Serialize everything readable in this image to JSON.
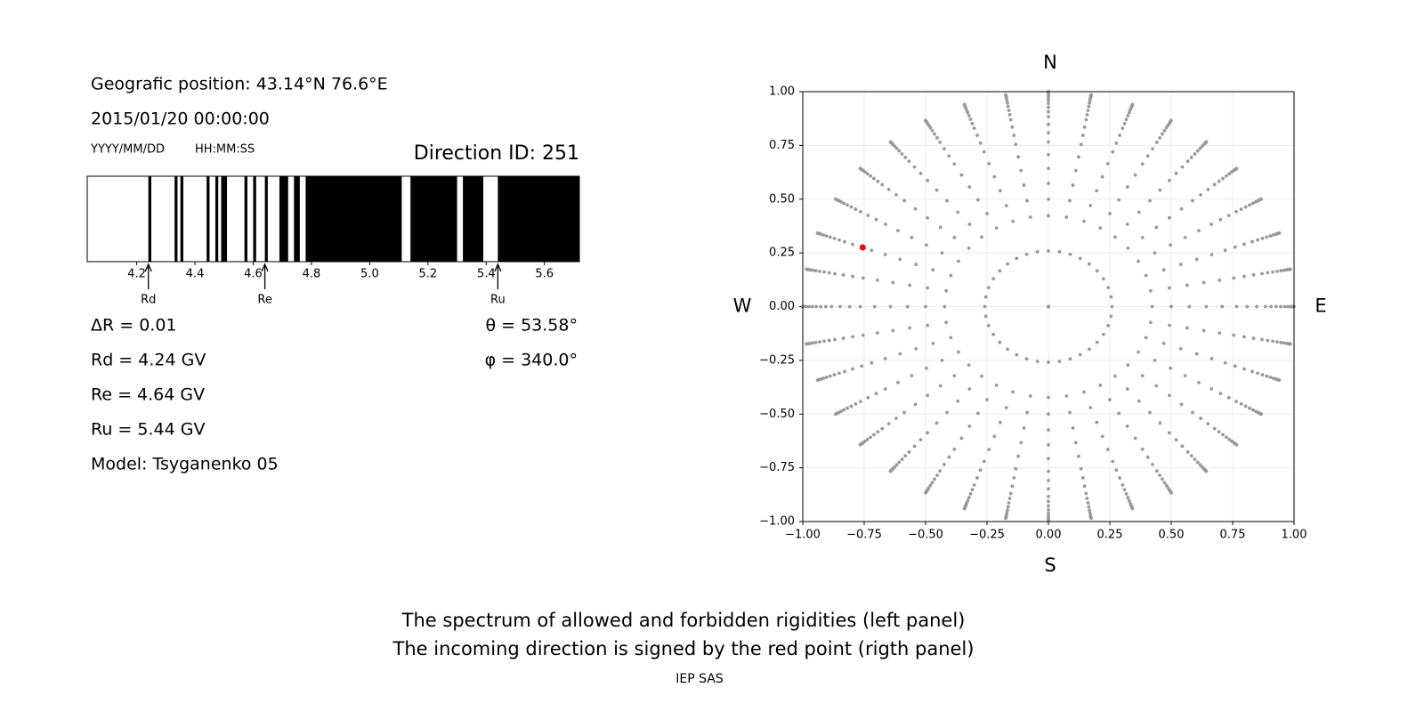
{
  "header": {
    "position": "Geografic position: 43.14°N 76.6°E",
    "datetime": "2015/01/20 00:00:00",
    "date_format": "YYYY/MM/DD",
    "time_format": "HH:MM:SS",
    "direction_id": "Direction ID: 251"
  },
  "chart_data": [
    {
      "type": "spectrum",
      "color": "#000000",
      "xlim": [
        4.03,
        5.72
      ],
      "xticks": [
        4.2,
        4.4,
        4.6,
        4.8,
        {
          "value": 5,
          "label": "5.0"
        },
        5.2,
        5.4,
        5.6
      ],
      "bands": [
        [
          4.24,
          4.25
        ],
        [
          4.33,
          4.34
        ],
        [
          4.35,
          4.36
        ],
        [
          4.44,
          4.45
        ],
        [
          4.47,
          4.48
        ],
        [
          4.49,
          4.51
        ],
        [
          4.57,
          4.58
        ],
        [
          4.6,
          4.61
        ],
        [
          4.64,
          4.65
        ],
        [
          4.69,
          4.72
        ],
        [
          4.74,
          4.76
        ],
        [
          4.78,
          5.11
        ],
        [
          5.14,
          5.3
        ],
        [
          5.32,
          5.39
        ],
        [
          5.44,
          5.72
        ]
      ],
      "markers": [
        {
          "label": "Rd",
          "value": 4.24
        },
        {
          "label": "Re",
          "value": 4.64
        },
        {
          "label": "Ru",
          "value": 5.44
        }
      ]
    },
    {
      "type": "scatter",
      "color": "#999999",
      "grid": true,
      "xlim": [
        -1,
        1
      ],
      "ylim": [
        -1,
        1
      ],
      "xticks": [
        {
          "value": -1,
          "label": "−1.00"
        },
        {
          "value": -0.75,
          "label": "−0.75"
        },
        {
          "value": -0.5,
          "label": "−0.50"
        },
        {
          "value": -0.25,
          "label": "−0.25"
        },
        {
          "value": 0,
          "label": "0.00"
        },
        {
          "value": 0.25,
          "label": "0.25"
        },
        {
          "value": 0.5,
          "label": "0.50"
        },
        {
          "value": 0.75,
          "label": "0.75"
        },
        {
          "value": 1,
          "label": "1.00"
        }
      ],
      "yticks": [
        {
          "value": -1,
          "label": "−1.00"
        },
        {
          "value": -0.75,
          "label": "−0.75"
        },
        {
          "value": -0.5,
          "label": "−0.50"
        },
        {
          "value": -0.25,
          "label": "−0.25"
        },
        {
          "value": 0,
          "label": "0.00"
        },
        {
          "value": 0.25,
          "label": "0.25"
        },
        {
          "value": 0.5,
          "label": "0.50"
        },
        {
          "value": 0.75,
          "label": "0.75"
        },
        {
          "value": 1,
          "label": "1.00"
        }
      ],
      "theta": [
        0,
        15,
        25,
        30,
        35,
        40,
        45,
        50,
        54,
        58,
        62,
        65,
        68,
        71,
        74,
        77,
        80,
        82,
        84,
        86,
        88,
        90
      ],
      "phi": [
        0,
        10,
        20,
        30,
        40,
        50,
        60,
        70,
        80,
        90,
        100,
        110,
        120,
        130,
        140,
        150,
        160,
        170,
        180,
        190,
        200,
        210,
        220,
        230,
        240,
        250,
        260,
        270,
        280,
        290,
        300,
        310,
        320,
        330,
        340,
        350
      ],
      "highlight": {
        "theta": 53.58,
        "phi": 340.0,
        "color": "#ff0000"
      },
      "compass": {
        "north": "N",
        "south": "S",
        "west": "W",
        "east": "E"
      }
    }
  ],
  "parameters": {
    "left": [
      "ΔR = 0.01",
      "Rd = 4.24 GV",
      "Re = 4.64 GV",
      "Ru = 5.44 GV",
      "Model: Tsyganenko 05"
    ],
    "right": [
      "θ = 53.58°",
      "φ = 340.0°"
    ]
  },
  "caption": [
    "The spectrum of allowed and forbidden rigidities (left panel)",
    "The incoming direction is signed by the red point (rigth panel)"
  ],
  "footer": "IEP SAS"
}
